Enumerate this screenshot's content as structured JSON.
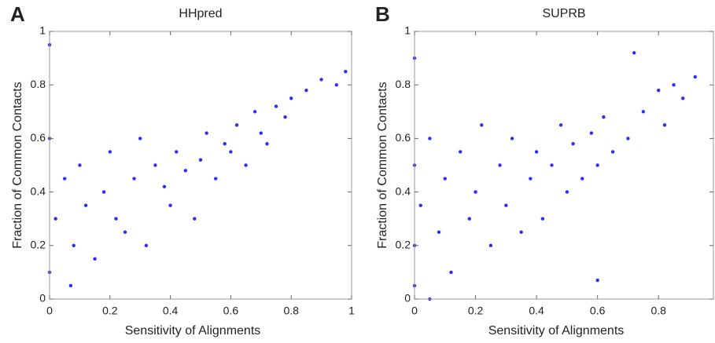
{
  "chart_data": [
    {
      "type": "scatter",
      "panel_label": "A",
      "title": "HHpred",
      "x_label": "Sensitivity of Alignments",
      "y_label": "Fraction of Common Contacts",
      "color": "#2b2bff",
      "x": [
        0,
        0,
        0,
        0.02,
        0.05,
        0.08,
        0.1,
        0.12,
        0.15,
        0.18,
        0.2,
        0.22,
        0.25,
        0.28,
        0.3,
        0.32,
        0.35,
        0.38,
        0.4,
        0.42,
        0.45,
        0.48,
        0.5,
        0.52,
        0.55,
        0.58,
        0.6,
        0.62,
        0.65,
        0.68,
        0.7,
        0.72,
        0.75,
        0.78,
        0.8,
        0.85,
        0.9,
        0.95,
        0.98,
        0.07
      ],
      "values": [
        0.95,
        0.6,
        0.1,
        0.3,
        0.45,
        0.2,
        0.5,
        0.35,
        0.15,
        0.4,
        0.55,
        0.3,
        0.25,
        0.45,
        0.6,
        0.2,
        0.5,
        0.42,
        0.35,
        0.55,
        0.48,
        0.3,
        0.52,
        0.62,
        0.45,
        0.58,
        0.55,
        0.65,
        0.5,
        0.7,
        0.62,
        0.58,
        0.72,
        0.68,
        0.75,
        0.78,
        0.82,
        0.8,
        0.85,
        0.05
      ],
      "xlim": [
        0,
        1
      ],
      "ylim": [
        0,
        1
      ],
      "xticks": [
        0,
        0.2,
        0.4,
        0.6,
        0.8,
        1
      ],
      "yticks": [
        0,
        0.2,
        0.4,
        0.6,
        0.8,
        1
      ]
    },
    {
      "type": "scatter",
      "panel_label": "B",
      "title": "SUPRB",
      "x_label": "Sensitivity of Alignments",
      "y_label": "Fraction of Common Contacts",
      "color": "#2b2bff",
      "x": [
        0,
        0,
        0,
        0,
        0.02,
        0.05,
        0.08,
        0.1,
        0.12,
        0.15,
        0.18,
        0.2,
        0.22,
        0.25,
        0.28,
        0.3,
        0.32,
        0.35,
        0.38,
        0.4,
        0.42,
        0.45,
        0.48,
        0.5,
        0.52,
        0.55,
        0.58,
        0.6,
        0.62,
        0.65,
        0.7,
        0.72,
        0.75,
        0.8,
        0.82,
        0.85,
        0.88,
        0.92,
        0.6,
        0.05
      ],
      "values": [
        0.9,
        0.5,
        0.2,
        0.05,
        0.35,
        0.6,
        0.25,
        0.45,
        0.1,
        0.55,
        0.3,
        0.4,
        0.65,
        0.2,
        0.5,
        0.35,
        0.6,
        0.25,
        0.45,
        0.55,
        0.3,
        0.5,
        0.65,
        0.4,
        0.58,
        0.45,
        0.62,
        0.5,
        0.68,
        0.55,
        0.6,
        0.92,
        0.7,
        0.78,
        0.65,
        0.8,
        0.75,
        0.83,
        0.07,
        0
      ],
      "xlim": [
        0,
        0.98
      ],
      "ylim": [
        0,
        1
      ],
      "xticks": [
        0,
        0.2,
        0.4,
        0.6,
        0.8
      ],
      "yticks": [
        0,
        0.2,
        0.4,
        0.6,
        0.8,
        1
      ]
    }
  ]
}
